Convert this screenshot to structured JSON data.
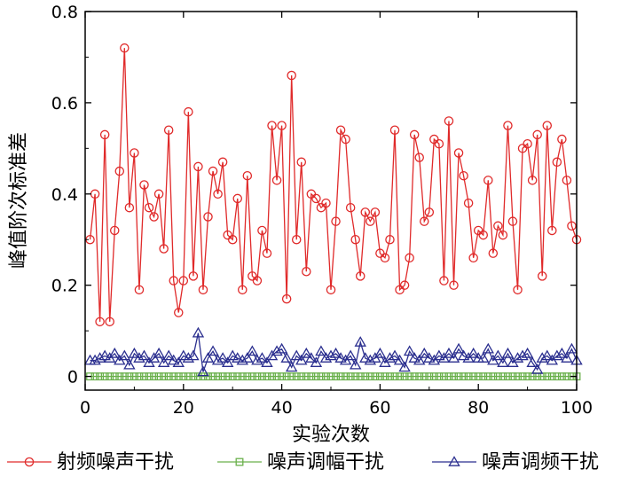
{
  "chart_data": {
    "type": "line",
    "xlabel": "实验次数",
    "ylabel": "峰值阶次标准差",
    "xlim": [
      0,
      100
    ],
    "ylim": [
      -0.03,
      0.8
    ],
    "xticks": [
      0,
      20,
      40,
      60,
      80,
      100
    ],
    "yticks": [
      0,
      0.2,
      0.4,
      0.6,
      0.8
    ],
    "xtick_labels": [
      "0",
      "20",
      "40",
      "60",
      "80",
      "100"
    ],
    "ytick_labels": [
      "0",
      "0.2",
      "0.4",
      "0.6",
      "0.8"
    ],
    "grid": false,
    "legend_position": "bottom",
    "series": [
      {
        "name": "射频噪声干扰",
        "marker": "circle",
        "color": "#e02a2a",
        "x": [
          1,
          2,
          3,
          4,
          5,
          6,
          7,
          8,
          9,
          10,
          11,
          12,
          13,
          14,
          15,
          16,
          17,
          18,
          19,
          20,
          21,
          22,
          23,
          24,
          25,
          26,
          27,
          28,
          29,
          30,
          31,
          32,
          33,
          34,
          35,
          36,
          37,
          38,
          39,
          40,
          41,
          42,
          43,
          44,
          45,
          46,
          47,
          48,
          49,
          50,
          51,
          52,
          53,
          54,
          55,
          56,
          57,
          58,
          59,
          60,
          61,
          62,
          63,
          64,
          65,
          66,
          67,
          68,
          69,
          70,
          71,
          72,
          73,
          74,
          75,
          76,
          77,
          78,
          79,
          80,
          81,
          82,
          83,
          84,
          85,
          86,
          87,
          88,
          89,
          90,
          91,
          92,
          93,
          94,
          95,
          96,
          97,
          98,
          99,
          100
        ],
        "values": [
          0.3,
          0.4,
          0.12,
          0.53,
          0.12,
          0.32,
          0.45,
          0.72,
          0.37,
          0.49,
          0.19,
          0.42,
          0.37,
          0.35,
          0.4,
          0.28,
          0.54,
          0.21,
          0.14,
          0.21,
          0.58,
          0.22,
          0.46,
          0.19,
          0.35,
          0.45,
          0.4,
          0.47,
          0.31,
          0.3,
          0.39,
          0.19,
          0.44,
          0.22,
          0.21,
          0.32,
          0.27,
          0.55,
          0.43,
          0.55,
          0.17,
          0.66,
          0.3,
          0.47,
          0.23,
          0.4,
          0.39,
          0.37,
          0.38,
          0.19,
          0.34,
          0.54,
          0.52,
          0.37,
          0.3,
          0.22,
          0.36,
          0.34,
          0.36,
          0.27,
          0.26,
          0.3,
          0.54,
          0.19,
          0.2,
          0.26,
          0.53,
          0.48,
          0.34,
          0.36,
          0.52,
          0.51,
          0.21,
          0.56,
          0.2,
          0.49,
          0.44,
          0.38,
          0.26,
          0.32,
          0.31,
          0.43,
          0.27,
          0.33,
          0.31,
          0.55,
          0.34,
          0.19,
          0.5,
          0.51,
          0.43,
          0.53,
          0.22,
          0.55,
          0.32,
          0.47,
          0.52,
          0.43,
          0.33,
          0.3
        ]
      },
      {
        "name": "噪声调幅干扰",
        "marker": "square",
        "color": "#6ab04c",
        "x": [
          1,
          2,
          3,
          4,
          5,
          6,
          7,
          8,
          9,
          10,
          11,
          12,
          13,
          14,
          15,
          16,
          17,
          18,
          19,
          20,
          21,
          22,
          23,
          24,
          25,
          26,
          27,
          28,
          29,
          30,
          31,
          32,
          33,
          34,
          35,
          36,
          37,
          38,
          39,
          40,
          41,
          42,
          43,
          44,
          45,
          46,
          47,
          48,
          49,
          50,
          51,
          52,
          53,
          54,
          55,
          56,
          57,
          58,
          59,
          60,
          61,
          62,
          63,
          64,
          65,
          66,
          67,
          68,
          69,
          70,
          71,
          72,
          73,
          74,
          75,
          76,
          77,
          78,
          79,
          80,
          81,
          82,
          83,
          84,
          85,
          86,
          87,
          88,
          89,
          90,
          91,
          92,
          93,
          94,
          95,
          96,
          97,
          98,
          99,
          100
        ],
        "values": [
          0,
          0,
          0,
          0,
          0,
          0,
          0,
          0,
          0,
          0,
          0,
          0,
          0,
          0,
          0,
          0,
          0,
          0,
          0,
          0,
          0,
          0,
          0,
          0,
          0,
          0,
          0,
          0,
          0,
          0,
          0,
          0,
          0,
          0,
          0,
          0,
          0,
          0,
          0,
          0,
          0,
          0,
          0,
          0,
          0,
          0,
          0,
          0,
          0,
          0,
          0,
          0,
          0,
          0,
          0,
          0,
          0,
          0,
          0,
          0,
          0,
          0,
          0,
          0,
          0,
          0,
          0,
          0,
          0,
          0,
          0,
          0,
          0,
          0,
          0,
          0,
          0,
          0,
          0,
          0,
          0,
          0,
          0,
          0,
          0,
          0,
          0,
          0,
          0,
          0,
          0,
          0,
          0,
          0,
          0,
          0,
          0,
          0,
          0,
          0
        ]
      },
      {
        "name": "噪声调频干扰",
        "marker": "triangle",
        "color": "#2b2f8f",
        "x": [
          1,
          2,
          3,
          4,
          5,
          6,
          7,
          8,
          9,
          10,
          11,
          12,
          13,
          14,
          15,
          16,
          17,
          18,
          19,
          20,
          21,
          22,
          23,
          24,
          25,
          26,
          27,
          28,
          29,
          30,
          31,
          32,
          33,
          34,
          35,
          36,
          37,
          38,
          39,
          40,
          41,
          42,
          43,
          44,
          45,
          46,
          47,
          48,
          49,
          50,
          51,
          52,
          53,
          54,
          55,
          56,
          57,
          58,
          59,
          60,
          61,
          62,
          63,
          64,
          65,
          66,
          67,
          68,
          69,
          70,
          71,
          72,
          73,
          74,
          75,
          76,
          77,
          78,
          79,
          80,
          81,
          82,
          83,
          84,
          85,
          86,
          87,
          88,
          89,
          90,
          91,
          92,
          93,
          94,
          95,
          96,
          97,
          98,
          99,
          100
        ],
        "values": [
          0.035,
          0.035,
          0.04,
          0.045,
          0.04,
          0.05,
          0.035,
          0.045,
          0.025,
          0.05,
          0.04,
          0.045,
          0.03,
          0.04,
          0.05,
          0.03,
          0.045,
          0.035,
          0.03,
          0.045,
          0.04,
          0.045,
          0.095,
          0.01,
          0.04,
          0.055,
          0.035,
          0.04,
          0.03,
          0.045,
          0.04,
          0.035,
          0.04,
          0.055,
          0.035,
          0.04,
          0.03,
          0.045,
          0.055,
          0.06,
          0.04,
          0.02,
          0.045,
          0.035,
          0.05,
          0.04,
          0.03,
          0.055,
          0.04,
          0.045,
          0.05,
          0.04,
          0.035,
          0.045,
          0.025,
          0.075,
          0.04,
          0.035,
          0.04,
          0.05,
          0.03,
          0.04,
          0.045,
          0.035,
          0.02,
          0.055,
          0.04,
          0.035,
          0.05,
          0.04,
          0.035,
          0.045,
          0.04,
          0.05,
          0.04,
          0.06,
          0.045,
          0.04,
          0.05,
          0.04,
          0.04,
          0.06,
          0.035,
          0.045,
          0.03,
          0.05,
          0.03,
          0.04,
          0.045,
          0.05,
          0.03,
          0.015,
          0.04,
          0.045,
          0.035,
          0.045,
          0.05,
          0.04,
          0.06,
          0.035
        ]
      }
    ]
  }
}
